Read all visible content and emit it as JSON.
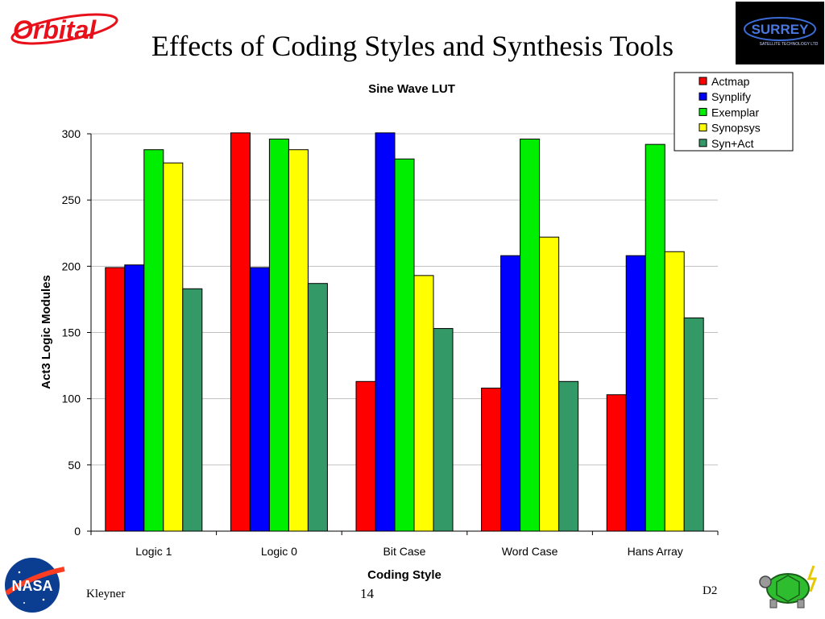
{
  "slide": {
    "title": "Effects of Coding Styles and Synthesis Tools",
    "footer_author": "Kleyner",
    "footer_page": "14",
    "footer_code": "D2",
    "logos": {
      "orbital": "Orbital",
      "surrey": "SURREY",
      "surrey_sub": "SATELLITE TECHNOLOGY LTD",
      "nasa": "NASA"
    }
  },
  "colors": {
    "Actmap": "#ff0000",
    "Synplify": "#0000ff",
    "Exemplar": "#00ee00",
    "Synopsys": "#ffff00",
    "Syn+Act": "#339966",
    "grid": "#c0c0c0",
    "orbital_red": "#e8101a"
  },
  "chart_data": {
    "type": "bar",
    "title": "Sine Wave LUT",
    "xlabel": "Coding Style",
    "ylabel": "Act3 Logic Modules",
    "ylim": [
      0,
      300
    ],
    "yticks": [
      0,
      50,
      100,
      150,
      200,
      250,
      300
    ],
    "grid": true,
    "legend_position": "top-right",
    "categories": [
      "Logic 1",
      "Logic 0",
      "Bit Case",
      "Word Case",
      "Hans Array"
    ],
    "series": [
      {
        "name": "Actmap",
        "values": [
          199,
          302,
          113,
          108,
          103
        ]
      },
      {
        "name": "Synplify",
        "values": [
          201,
          199,
          302,
          208,
          208
        ]
      },
      {
        "name": "Exemplar",
        "values": [
          288,
          296,
          281,
          296,
          292
        ]
      },
      {
        "name": "Synopsys",
        "values": [
          278,
          288,
          193,
          222,
          211
        ]
      },
      {
        "name": "Syn+Act",
        "values": [
          183,
          187,
          153,
          113,
          161
        ]
      }
    ]
  }
}
